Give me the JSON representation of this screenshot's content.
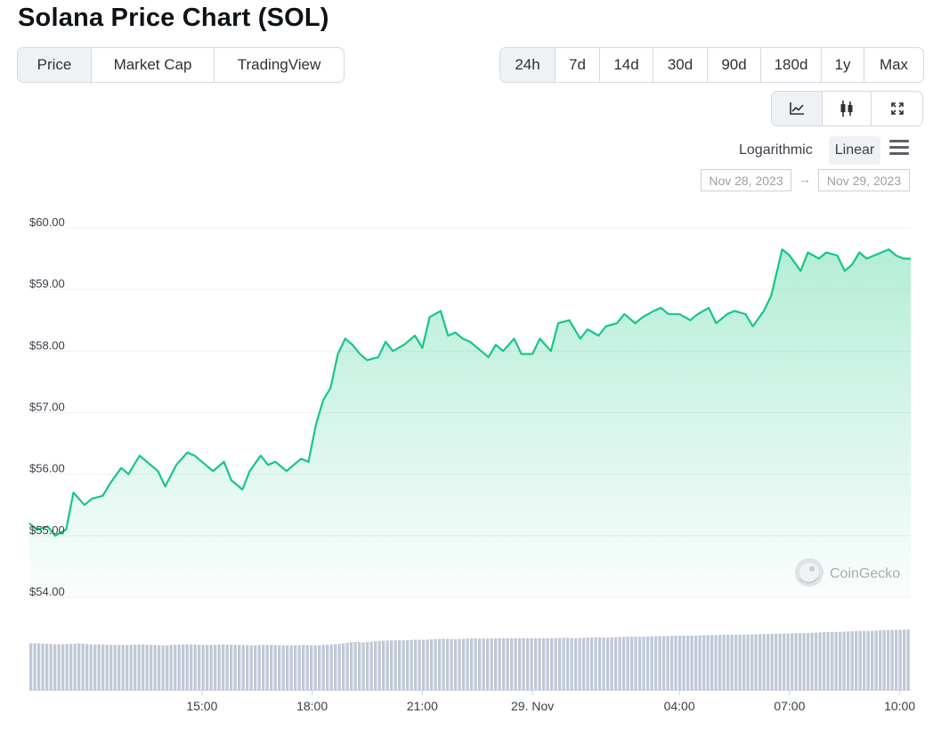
{
  "title": "Solana Price Chart (SOL)",
  "view_tabs": [
    "Price",
    "Market Cap",
    "TradingView"
  ],
  "view_active": 0,
  "range_tabs": [
    "24h",
    "7d",
    "14d",
    "30d",
    "90d",
    "180d",
    "1y",
    "Max"
  ],
  "range_active": 0,
  "chart_type_icons": [
    "line-chart-icon",
    "candlestick-icon",
    "fullscreen-icon"
  ],
  "scale": {
    "logarithmic": "Logarithmic",
    "linear": "Linear",
    "active": "linear"
  },
  "date_range": {
    "from": "Nov 28, 2023",
    "arrow": "→",
    "to": "Nov 29, 2023"
  },
  "watermark": "CoinGecko",
  "colors": {
    "line": "#16c784",
    "fill": "#16c784",
    "volume": "#bfc8d6",
    "active_tab": "#eff2f5"
  },
  "chart_data": {
    "type": "area",
    "ylim": [
      54,
      60
    ],
    "yticks": [
      "$60.00",
      "$59.00",
      "$58.00",
      "$57.00",
      "$56.00",
      "$55.00",
      "$54.00"
    ],
    "ytick_values": [
      60,
      59,
      58,
      57,
      56,
      55,
      54
    ],
    "xticks": [
      "15:00",
      "18:00",
      "21:00",
      "29. Nov",
      "04:00",
      "07:00",
      "10:00"
    ],
    "xtick_hours": [
      15,
      18,
      21,
      24,
      28,
      31,
      34
    ],
    "xlim_hours": [
      10.3,
      34.3
    ],
    "series": [
      {
        "x": [
          10.3,
          10.5,
          10.8,
          11.0,
          11.3,
          11.5,
          11.8,
          12.0,
          12.3,
          12.5,
          12.8,
          13.0,
          13.3,
          13.6,
          13.8,
          14.0,
          14.3,
          14.6,
          14.8,
          15.0,
          15.3,
          15.6,
          15.8,
          16.1,
          16.3,
          16.6,
          16.8,
          17.0,
          17.3,
          17.5,
          17.7,
          17.9,
          18.1,
          18.3,
          18.5,
          18.7,
          18.9,
          19.1,
          19.3,
          19.5,
          19.8,
          20.0,
          20.2,
          20.5,
          20.8,
          21.0,
          21.2,
          21.5,
          21.7,
          21.9,
          22.1,
          22.3,
          22.5,
          22.8,
          23.0,
          23.2,
          23.5,
          23.7,
          24.0,
          24.2,
          24.5,
          24.7,
          25.0,
          25.3,
          25.5,
          25.8,
          26.0,
          26.3,
          26.5,
          26.8,
          27.0,
          27.3,
          27.5,
          27.7,
          28.0,
          28.3,
          28.5,
          28.8,
          29.0,
          29.3,
          29.5,
          29.8,
          30.0,
          30.3,
          30.5,
          30.8,
          31.0,
          31.3,
          31.5,
          31.8,
          32.0,
          32.3,
          32.5,
          32.7,
          32.9,
          33.1,
          33.3,
          33.5,
          33.7,
          33.9,
          34.1,
          34.3
        ],
        "y": [
          55.1,
          55.0,
          55.05,
          54.9,
          55.0,
          55.6,
          55.4,
          55.5,
          55.55,
          55.75,
          56.0,
          55.9,
          56.2,
          56.05,
          55.95,
          55.7,
          56.05,
          56.25,
          56.2,
          56.1,
          55.95,
          56.1,
          55.8,
          55.65,
          55.95,
          56.2,
          56.05,
          56.1,
          55.95,
          56.05,
          56.15,
          56.1,
          56.7,
          57.1,
          57.3,
          57.85,
          58.1,
          58.0,
          57.85,
          57.75,
          57.8,
          58.05,
          57.9,
          58.0,
          58.15,
          57.95,
          58.45,
          58.55,
          58.15,
          58.2,
          58.1,
          58.05,
          57.95,
          57.8,
          58.0,
          57.9,
          58.1,
          57.85,
          57.85,
          58.1,
          57.9,
          58.35,
          58.4,
          58.1,
          58.25,
          58.15,
          58.3,
          58.35,
          58.5,
          58.35,
          58.45,
          58.55,
          58.6,
          58.5,
          58.5,
          58.4,
          58.5,
          58.6,
          58.35,
          58.5,
          58.55,
          58.5,
          58.3,
          58.55,
          58.8,
          59.55,
          59.45,
          59.2,
          59.5,
          59.4,
          59.5,
          59.45,
          59.2,
          59.3,
          59.5,
          59.4,
          59.45,
          59.5,
          59.55,
          59.45,
          59.4,
          59.4
        ]
      }
    ],
    "volume_relative": [
      0.9,
      0.9,
      0.89,
      0.88,
      0.89,
      0.9,
      0.88,
      0.88,
      0.87,
      0.87,
      0.87,
      0.88,
      0.87,
      0.86,
      0.87,
      0.88,
      0.88,
      0.87,
      0.87,
      0.88,
      0.87,
      0.87,
      0.86,
      0.87,
      0.87,
      0.86,
      0.86,
      0.87,
      0.86,
      0.87,
      0.88,
      0.9,
      0.93,
      0.92,
      0.94,
      0.95,
      0.96,
      0.96,
      0.97,
      0.97,
      0.98,
      0.99,
      0.98,
      0.99,
      1.0,
      0.99,
      1.0,
      1.0,
      1.0,
      1.0,
      1.0,
      1.0,
      1.0,
      1.01,
      1.0,
      1.01,
      1.02,
      1.01,
      1.02,
      1.03,
      1.03,
      1.03,
      1.04,
      1.04,
      1.05,
      1.05,
      1.05,
      1.06,
      1.06,
      1.07,
      1.07,
      1.07,
      1.08,
      1.08,
      1.09,
      1.09,
      1.1,
      1.1,
      1.11,
      1.12,
      1.12,
      1.13,
      1.14,
      1.14,
      1.15,
      1.16,
      1.16,
      1.17
    ]
  }
}
